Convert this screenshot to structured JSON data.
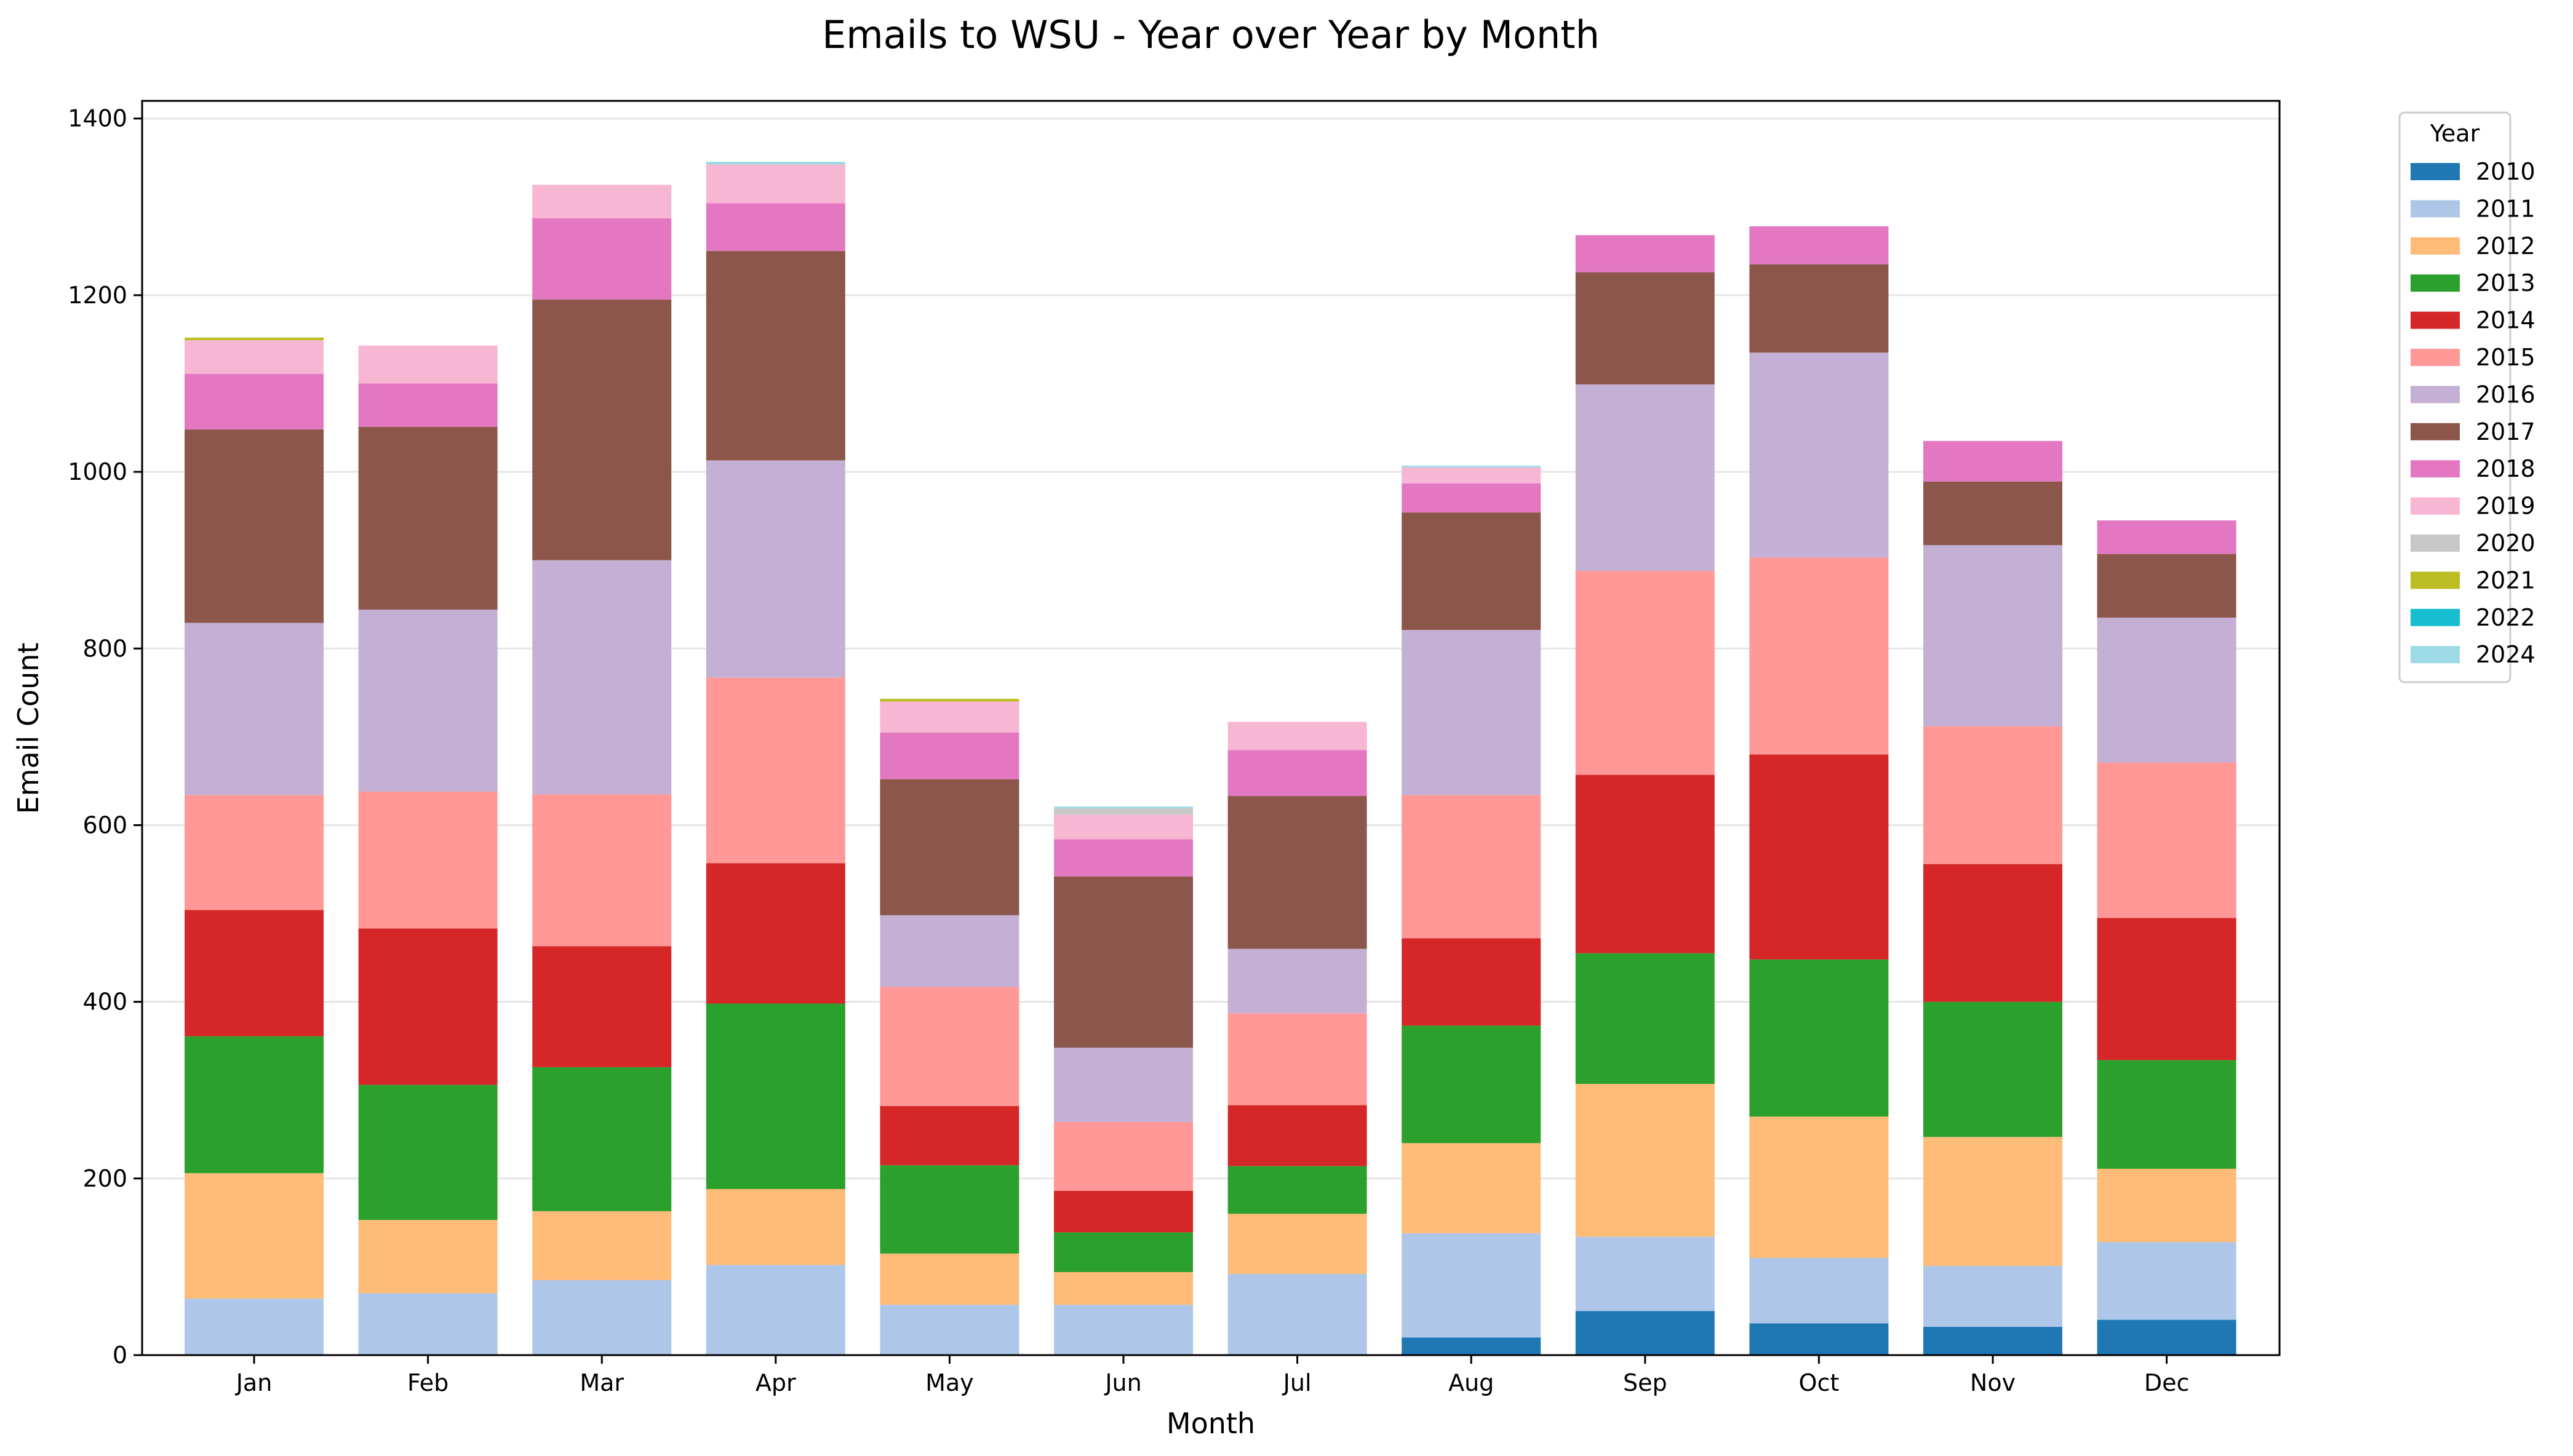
{
  "chart_data": {
    "type": "bar",
    "stacked": true,
    "title": "Emails to WSU - Year over Year by Month",
    "xlabel": "Month",
    "ylabel": "Email Count",
    "ylim": [
      0,
      1420
    ],
    "yticks": [
      0,
      200,
      400,
      600,
      800,
      1000,
      1200,
      1400
    ],
    "grid": "y",
    "legend": {
      "title": "Year",
      "placement": "outside-top-right"
    },
    "categories": [
      "Jan",
      "Feb",
      "Mar",
      "Apr",
      "May",
      "Jun",
      "Jul",
      "Aug",
      "Sep",
      "Oct",
      "Nov",
      "Dec"
    ],
    "series": [
      {
        "name": "2010",
        "color": "#1f77b4",
        "values": [
          0,
          0,
          0,
          0,
          0,
          0,
          0,
          20,
          50,
          36,
          32,
          40
        ]
      },
      {
        "name": "2011",
        "color": "#aec7e8",
        "values": [
          64,
          70,
          85,
          102,
          57,
          57,
          92,
          118,
          84,
          74,
          69,
          88
        ]
      },
      {
        "name": "2012",
        "color": "#ffbb78",
        "values": [
          142,
          83,
          78,
          86,
          58,
          37,
          68,
          102,
          173,
          160,
          146,
          83
        ]
      },
      {
        "name": "2013",
        "color": "#2ca02c",
        "values": [
          155,
          153,
          163,
          210,
          100,
          45,
          54,
          133,
          148,
          178,
          153,
          123
        ]
      },
      {
        "name": "2014",
        "color": "#d62728",
        "values": [
          143,
          177,
          137,
          159,
          67,
          47,
          69,
          99,
          202,
          232,
          156,
          161
        ]
      },
      {
        "name": "2015",
        "color": "#ff9896",
        "values": [
          130,
          155,
          172,
          210,
          135,
          78,
          104,
          162,
          231,
          223,
          156,
          176
        ]
      },
      {
        "name": "2016",
        "color": "#c5b0d5",
        "values": [
          195,
          206,
          265,
          246,
          81,
          84,
          73,
          187,
          211,
          232,
          205,
          164
        ]
      },
      {
        "name": "2017",
        "color": "#8c564b",
        "values": [
          219,
          207,
          295,
          237,
          154,
          194,
          173,
          133,
          127,
          100,
          72,
          72
        ]
      },
      {
        "name": "2018",
        "color": "#e377c2",
        "values": [
          63,
          49,
          92,
          54,
          53,
          42,
          52,
          33,
          42,
          43,
          46,
          38
        ]
      },
      {
        "name": "2019",
        "color": "#f7b6d2",
        "values": [
          38,
          43,
          38,
          44,
          35,
          28,
          32,
          18,
          0,
          0,
          0,
          0
        ]
      },
      {
        "name": "2020",
        "color": "#c7c7c7",
        "values": [
          0,
          0,
          0,
          0,
          0,
          7,
          0,
          0,
          0,
          0,
          0,
          0
        ]
      },
      {
        "name": "2021",
        "color": "#bcbd22",
        "values": [
          3,
          0,
          0,
          0,
          3,
          0,
          0,
          0,
          0,
          0,
          0,
          0
        ]
      },
      {
        "name": "2022",
        "color": "#17becf",
        "values": [
          0,
          0,
          0,
          0,
          0,
          0,
          0,
          0,
          0,
          0,
          0,
          0
        ]
      },
      {
        "name": "2024",
        "color": "#9edae5",
        "values": [
          0,
          0,
          0,
          3,
          0,
          2,
          0,
          2,
          0,
          0,
          0,
          0
        ]
      }
    ]
  }
}
